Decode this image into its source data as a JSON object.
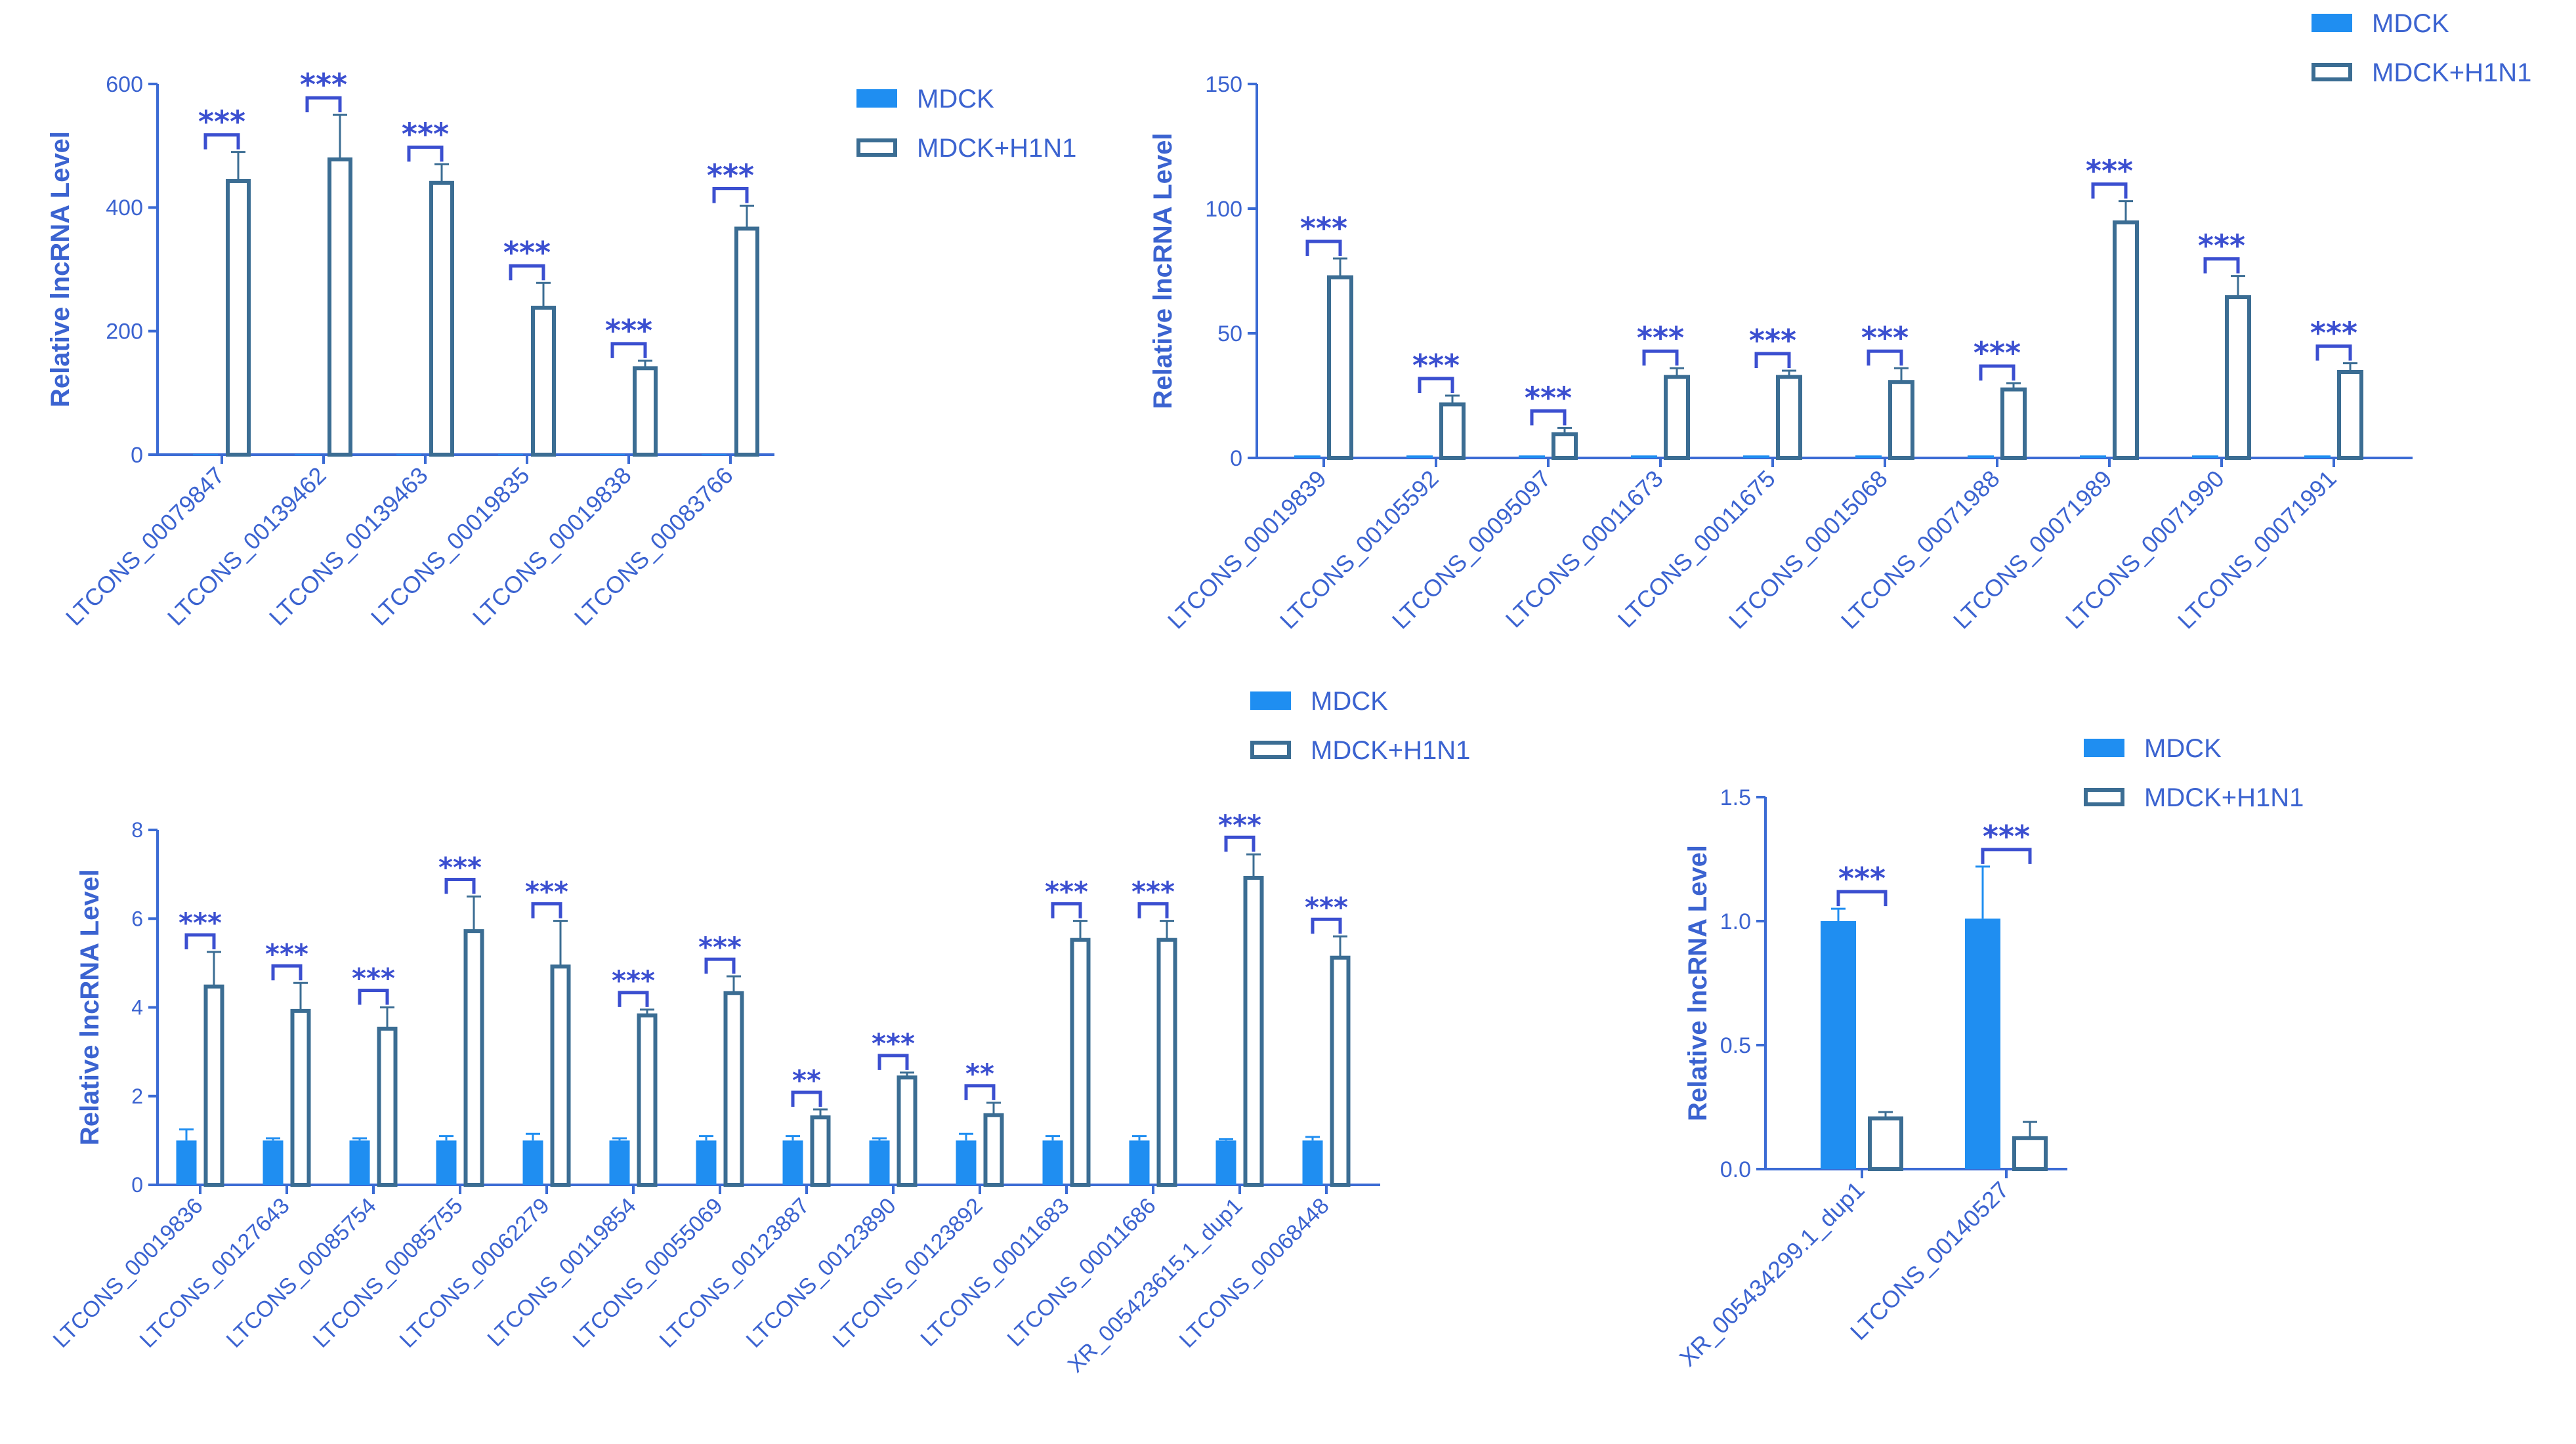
{
  "colors": {
    "mdck": "#1f8ef1",
    "h1n1_edge": "#3b6d93",
    "axis": "#3b6bd4",
    "text": "#3b63d0",
    "bracket": "#3b4fd0"
  },
  "chart_data": [
    {
      "type": "bar",
      "ylabel": "Relative lncRNA Level",
      "ylim": [
        0,
        600
      ],
      "yticks": [
        0,
        200,
        400,
        600
      ],
      "ytick_labels": [
        "0",
        "200",
        "400",
        "600"
      ],
      "legend": {
        "position": "right",
        "entries": [
          "MDCK",
          "MDCK+H1N1"
        ]
      },
      "categories": [
        "LTCONS_00079847",
        "LTCONS_00139462",
        "LTCONS_00139463",
        "LTCONS_00019835",
        "LTCONS_00019838",
        "LTCONS_00083766"
      ],
      "series": [
        {
          "name": "MDCK",
          "values": [
            1,
            1,
            1,
            1,
            1,
            1
          ],
          "errors": [
            0,
            0,
            0,
            0,
            0,
            0
          ]
        },
        {
          "name": "MDCK+H1N1",
          "values": [
            445,
            480,
            442,
            240,
            142,
            368
          ],
          "errors": [
            45,
            70,
            28,
            38,
            10,
            35
          ]
        }
      ],
      "significance": [
        "***",
        "***",
        "***",
        "***",
        "***",
        "***"
      ]
    },
    {
      "type": "bar",
      "ylabel": "Relative lncRNA Level",
      "ylim": [
        0,
        150
      ],
      "yticks": [
        0,
        50,
        100,
        150
      ],
      "ytick_labels": [
        "0",
        "50",
        "100",
        "150"
      ],
      "legend": {
        "position": "top-right",
        "entries": [
          "MDCK",
          "MDCK+H1N1"
        ]
      },
      "categories": [
        "LTCONS_00019839",
        "LTCONS_00105592",
        "LTCONS_00095097",
        "LTCONS_00011673",
        "LTCONS_00011675",
        "LTCONS_00015068",
        "LTCONS_00071988",
        "LTCONS_00071989",
        "LTCONS_00071990",
        "LTCONS_00071991"
      ],
      "series": [
        {
          "name": "MDCK",
          "values": [
            1,
            1,
            1,
            1,
            1,
            1,
            1,
            1,
            1,
            1
          ],
          "errors": [
            0,
            0,
            0,
            0,
            0,
            0,
            0,
            0,
            0,
            0
          ]
        },
        {
          "name": "MDCK+H1N1",
          "values": [
            73,
            22,
            10,
            33,
            33,
            31,
            28,
            95,
            65,
            35
          ],
          "errors": [
            7,
            3,
            2,
            3,
            2,
            5,
            2,
            8,
            8,
            3
          ]
        }
      ],
      "significance": [
        "***",
        "***",
        "***",
        "***",
        "***",
        "***",
        "***",
        "***",
        "***",
        "***"
      ]
    },
    {
      "type": "bar",
      "ylabel": "Relative lncRNA Level",
      "ylim": [
        0,
        8
      ],
      "yticks": [
        0,
        2,
        4,
        6,
        8
      ],
      "ytick_labels": [
        "0",
        "2",
        "4",
        "6",
        "8"
      ],
      "legend": {
        "position": "top-right",
        "entries": [
          "MDCK",
          "MDCK+H1N1"
        ]
      },
      "categories": [
        "LTCONS_00019836",
        "LTCONS_00127643",
        "LTCONS_00085754",
        "LTCONS_00085755",
        "LTCONS_00062279",
        "LTCONS_00119854",
        "LTCONS_00055069",
        "LTCONS_00123887",
        "LTCONS_00123890",
        "LTCONS_00123892",
        "LTCONS_00011683",
        "LTCONS_00011686",
        "XR_005423615.1_dup1",
        "LTCONS_00068448"
      ],
      "series": [
        {
          "name": "MDCK",
          "values": [
            1.0,
            1.0,
            1.0,
            1.0,
            1.0,
            1.0,
            1.0,
            1.0,
            1.0,
            1.0,
            1.0,
            1.0,
            1.0,
            1.0
          ],
          "errors": [
            0.25,
            0.05,
            0.05,
            0.1,
            0.15,
            0.05,
            0.1,
            0.1,
            0.05,
            0.15,
            0.1,
            0.1,
            0.03,
            0.08
          ]
        },
        {
          "name": "MDCK+H1N1",
          "values": [
            4.5,
            3.95,
            3.55,
            5.75,
            4.95,
            3.85,
            4.35,
            1.55,
            2.45,
            1.6,
            5.55,
            5.55,
            6.95,
            5.15
          ],
          "errors": [
            0.75,
            0.6,
            0.45,
            0.75,
            1.0,
            0.1,
            0.35,
            0.15,
            0.08,
            0.25,
            0.4,
            0.4,
            0.5,
            0.45
          ]
        }
      ],
      "significance": [
        "***",
        "***",
        "***",
        "***",
        "***",
        "***",
        "***",
        "**",
        "***",
        "**",
        "***",
        "***",
        "***",
        "***"
      ]
    },
    {
      "type": "bar",
      "ylabel": "Relative lncRNA Level",
      "ylim": [
        0,
        1.5
      ],
      "yticks": [
        0,
        0.5,
        1.0,
        1.5
      ],
      "ytick_labels": [
        "0.0",
        "0.5",
        "1.0",
        "1.5"
      ],
      "legend": {
        "position": "top-right",
        "entries": [
          "MDCK",
          "MDCK+H1N1"
        ]
      },
      "categories": [
        "XR_005434299.1_dup1",
        "LTCONS_00140527"
      ],
      "series": [
        {
          "name": "MDCK",
          "values": [
            1.0,
            1.01
          ],
          "errors": [
            0.05,
            0.21
          ]
        },
        {
          "name": "MDCK+H1N1",
          "values": [
            0.21,
            0.13
          ],
          "errors": [
            0.02,
            0.06
          ]
        }
      ],
      "significance": [
        "***",
        "***"
      ]
    }
  ]
}
